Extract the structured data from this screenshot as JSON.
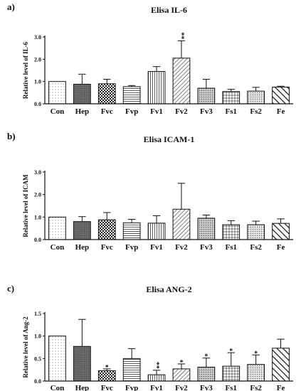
{
  "figure": {
    "background": "#ffffff",
    "ink": "#111111"
  },
  "chart_data": [
    {
      "panel": "a)",
      "type": "bar",
      "title": "Elisa IL-6",
      "xlabel": "",
      "ylabel": "Relative level of IL-6",
      "ylim": [
        0,
        3.0
      ],
      "yticks": [
        "0.0",
        "1.0",
        "2.0",
        "3.0"
      ],
      "grid": false,
      "categories": [
        "Con",
        "Hep",
        "Fvc",
        "Fvp",
        "Fv1",
        "Fv2",
        "Fv3",
        "Fs1",
        "Fs2",
        "Fe"
      ],
      "values": [
        1.0,
        0.88,
        0.9,
        0.77,
        1.45,
        2.05,
        0.7,
        0.55,
        0.57,
        0.75
      ],
      "errors": [
        0.0,
        0.45,
        0.2,
        0.05,
        0.22,
        0.78,
        0.4,
        0.1,
        0.17,
        0.04
      ],
      "significance": [
        "",
        "",
        "",
        "",
        "",
        "**",
        "",
        "",
        "",
        ""
      ],
      "patterns": [
        "dots",
        "dark",
        "checker",
        "hlines",
        "vlines",
        "diag-right",
        "dense-dots",
        "cross",
        "fine-dots",
        "diag-left-bold"
      ]
    },
    {
      "panel": "b)",
      "type": "bar",
      "title": "Elisa ICAM-1",
      "xlabel": "",
      "ylabel": "Relative level of ICAM",
      "ylim": [
        0,
        3.0
      ],
      "yticks": [
        "0.0",
        "1.0",
        "2.0",
        "3.0"
      ],
      "grid": false,
      "categories": [
        "Con",
        "Hep",
        "Fvc",
        "Fvp",
        "Fv1",
        "Fv2",
        "Fv3",
        "Fs1",
        "Fs2",
        "Fe"
      ],
      "values": [
        1.0,
        0.8,
        0.88,
        0.74,
        0.73,
        1.35,
        0.95,
        0.66,
        0.66,
        0.72
      ],
      "errors": [
        0.0,
        0.22,
        0.32,
        0.16,
        0.33,
        1.15,
        0.14,
        0.18,
        0.16,
        0.2
      ],
      "significance": [
        "",
        "",
        "",
        "",
        "",
        "",
        "",
        "",
        "",
        ""
      ],
      "patterns": [
        "dots",
        "dark",
        "checker",
        "hlines",
        "vlines",
        "diag-right",
        "dense-dots",
        "cross",
        "fine-dots",
        "diag-left-bold"
      ]
    },
    {
      "panel": "c)",
      "type": "bar",
      "title": "Elisa ANG-2",
      "xlabel": "",
      "ylabel": "Relative level of Ang-2",
      "ylim": [
        0,
        1.5
      ],
      "yticks": [
        "0.0",
        "0.5",
        "1.0",
        "1.5"
      ],
      "grid": false,
      "categories": [
        "Con",
        "Hep",
        "Fvc",
        "Fvp",
        "Fv1",
        "Fv2",
        "Fv3",
        "Fs1",
        "Fs2",
        "Fe"
      ],
      "values": [
        1.0,
        0.77,
        0.23,
        0.5,
        0.14,
        0.27,
        0.31,
        0.33,
        0.37,
        0.73
      ],
      "errors": [
        0.0,
        0.6,
        0.04,
        0.22,
        0.1,
        0.11,
        0.2,
        0.3,
        0.21,
        0.2
      ],
      "significance": [
        "",
        "",
        "*",
        "",
        "**",
        "*",
        "*",
        "*",
        "*",
        ""
      ],
      "patterns": [
        "dots",
        "dark",
        "checker",
        "hlines",
        "vlines",
        "diag-right",
        "dense-dots",
        "cross",
        "fine-dots",
        "diag-left-bold"
      ]
    }
  ]
}
